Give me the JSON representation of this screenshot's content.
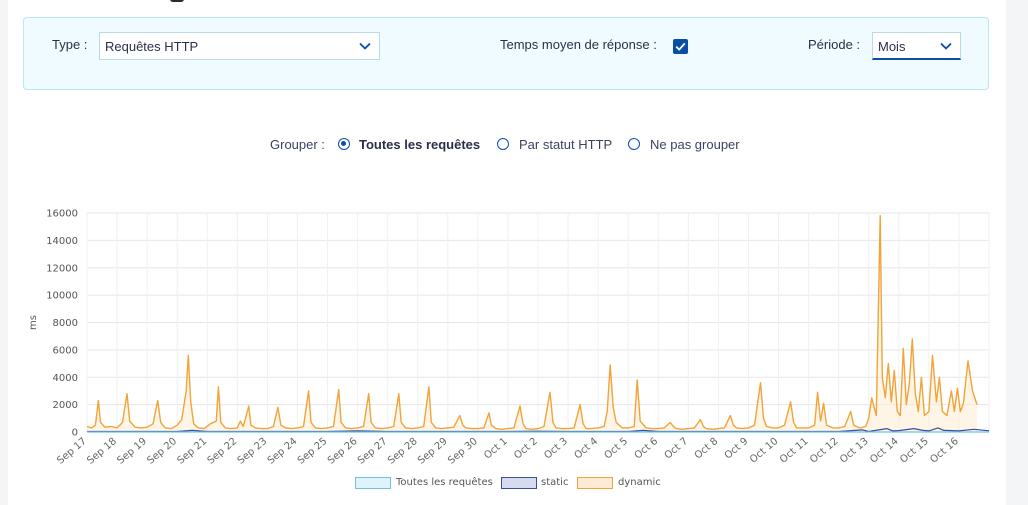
{
  "filters": {
    "type_label": "Type :",
    "type_value": "Requêtes HTTP",
    "avg_label": "Temps moyen de réponse :",
    "avg_checked": true,
    "period_label": "Période :",
    "period_value": "Mois"
  },
  "group": {
    "label": "Grouper :",
    "options": [
      {
        "label": "Toutes les requêtes",
        "selected": true
      },
      {
        "label": "Par statut HTTP",
        "selected": false
      },
      {
        "label": "Ne pas grouper",
        "selected": false
      }
    ]
  },
  "colors": {
    "dynamic": "#f0a43a",
    "dynamic_fill": "#fdecd3",
    "static": "#3b4e9c",
    "static_fill": "#d7dbee",
    "all": "#6ec3e6",
    "all_fill": "#dff3fb",
    "accent": "#0a4ea8"
  },
  "chart_data": {
    "type": "area",
    "ylabel": "ms",
    "ylim": [
      0,
      16000
    ],
    "yticks": [
      0,
      2000,
      4000,
      6000,
      8000,
      10000,
      12000,
      14000,
      16000
    ],
    "ytick_labels": [
      "0",
      "2000",
      "4000",
      "6000",
      "8000",
      "10000",
      "12000",
      "14000",
      "16000"
    ],
    "categories": [
      "Sep 17",
      "Sep 18",
      "Sep 19",
      "Sep 20",
      "Sep 21",
      "Sep 22",
      "Sep 23",
      "Sep 24",
      "Sep 25",
      "Sep 26",
      "Sep 27",
      "Sep 28",
      "Sep 29",
      "Sep 30",
      "Oct 1",
      "Oct 2",
      "Oct 3",
      "Oct 4",
      "Oct 5",
      "Oct 6",
      "Oct 7",
      "Oct 8",
      "Oct 9",
      "Oct 10",
      "Oct 11",
      "Oct 12",
      "Oct 13",
      "Oct 14",
      "Oct 15",
      "Oct 16"
    ],
    "grid": true,
    "legend_position": "bottom",
    "series": [
      {
        "name": "Toutes les requêtes",
        "points": [
          [
            0,
            0
          ],
          [
            30,
            0
          ]
        ],
        "fill_area": false
      },
      {
        "name": "static",
        "points": [
          [
            0,
            40
          ],
          [
            3,
            40
          ],
          [
            3.5,
            120
          ],
          [
            4,
            40
          ],
          [
            8,
            40
          ],
          [
            9,
            80
          ],
          [
            10,
            40
          ],
          [
            14,
            40
          ],
          [
            15,
            60
          ],
          [
            16,
            40
          ],
          [
            18,
            40
          ],
          [
            18.5,
            120
          ],
          [
            19,
            40
          ],
          [
            25,
            40
          ],
          [
            25.8,
            150
          ],
          [
            26,
            40
          ],
          [
            26.6,
            250
          ],
          [
            26.8,
            80
          ],
          [
            27,
            100
          ],
          [
            27.5,
            250
          ],
          [
            27.8,
            120
          ],
          [
            28,
            80
          ],
          [
            28.3,
            300
          ],
          [
            28.5,
            120
          ],
          [
            29,
            80
          ],
          [
            29.5,
            200
          ],
          [
            30,
            90
          ]
        ],
        "fill_area": false
      },
      {
        "name": "dynamic",
        "fill_area": true,
        "points": [
          [
            0,
            400
          ],
          [
            0.15,
            300
          ],
          [
            0.28,
            500
          ],
          [
            0.38,
            2300
          ],
          [
            0.45,
            700
          ],
          [
            0.6,
            350
          ],
          [
            0.8,
            400
          ],
          [
            1.0,
            300
          ],
          [
            1.18,
            700
          ],
          [
            1.33,
            2800
          ],
          [
            1.42,
            800
          ],
          [
            1.6,
            350
          ],
          [
            1.8,
            300
          ],
          [
            2.0,
            350
          ],
          [
            2.2,
            600
          ],
          [
            2.35,
            2300
          ],
          [
            2.45,
            700
          ],
          [
            2.6,
            300
          ],
          [
            2.8,
            250
          ],
          [
            3.0,
            500
          ],
          [
            3.15,
            900
          ],
          [
            3.3,
            3000
          ],
          [
            3.37,
            5600
          ],
          [
            3.45,
            2200
          ],
          [
            3.55,
            600
          ],
          [
            3.7,
            300
          ],
          [
            3.9,
            250
          ],
          [
            4.1,
            600
          ],
          [
            4.3,
            800
          ],
          [
            4.37,
            3300
          ],
          [
            4.45,
            700
          ],
          [
            4.6,
            300
          ],
          [
            4.8,
            250
          ],
          [
            5.0,
            300
          ],
          [
            5.1,
            800
          ],
          [
            5.2,
            400
          ],
          [
            5.38,
            1900
          ],
          [
            5.45,
            500
          ],
          [
            5.6,
            300
          ],
          [
            5.8,
            250
          ],
          [
            6.0,
            250
          ],
          [
            6.2,
            400
          ],
          [
            6.35,
            1800
          ],
          [
            6.45,
            500
          ],
          [
            6.6,
            300
          ],
          [
            6.8,
            250
          ],
          [
            7.0,
            300
          ],
          [
            7.2,
            400
          ],
          [
            7.37,
            3000
          ],
          [
            7.45,
            700
          ],
          [
            7.6,
            300
          ],
          [
            7.8,
            250
          ],
          [
            8.0,
            300
          ],
          [
            8.2,
            400
          ],
          [
            8.37,
            3100
          ],
          [
            8.45,
            700
          ],
          [
            8.6,
            300
          ],
          [
            8.8,
            250
          ],
          [
            9.0,
            300
          ],
          [
            9.2,
            400
          ],
          [
            9.37,
            2800
          ],
          [
            9.45,
            700
          ],
          [
            9.6,
            300
          ],
          [
            9.8,
            250
          ],
          [
            10.0,
            300
          ],
          [
            10.2,
            400
          ],
          [
            10.37,
            2800
          ],
          [
            10.45,
            700
          ],
          [
            10.6,
            300
          ],
          [
            10.8,
            250
          ],
          [
            11.0,
            300
          ],
          [
            11.2,
            400
          ],
          [
            11.37,
            3300
          ],
          [
            11.45,
            700
          ],
          [
            11.6,
            300
          ],
          [
            11.8,
            250
          ],
          [
            12.0,
            300
          ],
          [
            12.2,
            350
          ],
          [
            12.4,
            1200
          ],
          [
            12.5,
            500
          ],
          [
            12.6,
            300
          ],
          [
            12.8,
            250
          ],
          [
            13.0,
            250
          ],
          [
            13.2,
            300
          ],
          [
            13.37,
            1400
          ],
          [
            13.45,
            500
          ],
          [
            13.6,
            250
          ],
          [
            13.8,
            200
          ],
          [
            14.0,
            250
          ],
          [
            14.2,
            300
          ],
          [
            14.4,
            1900
          ],
          [
            14.5,
            600
          ],
          [
            14.6,
            250
          ],
          [
            14.8,
            200
          ],
          [
            15.0,
            250
          ],
          [
            15.2,
            400
          ],
          [
            15.4,
            2900
          ],
          [
            15.5,
            700
          ],
          [
            15.6,
            300
          ],
          [
            15.8,
            250
          ],
          [
            16.0,
            250
          ],
          [
            16.2,
            300
          ],
          [
            16.4,
            2000
          ],
          [
            16.5,
            600
          ],
          [
            16.6,
            250
          ],
          [
            16.8,
            250
          ],
          [
            17.0,
            300
          ],
          [
            17.2,
            400
          ],
          [
            17.3,
            1500
          ],
          [
            17.4,
            4900
          ],
          [
            17.5,
            1800
          ],
          [
            17.6,
            700
          ],
          [
            17.8,
            300
          ],
          [
            18.0,
            300
          ],
          [
            18.2,
            400
          ],
          [
            18.3,
            3800
          ],
          [
            18.4,
            800
          ],
          [
            18.6,
            300
          ],
          [
            18.8,
            250
          ],
          [
            19.0,
            250
          ],
          [
            19.2,
            300
          ],
          [
            19.4,
            700
          ],
          [
            19.5,
            400
          ],
          [
            19.6,
            250
          ],
          [
            19.8,
            200
          ],
          [
            20.0,
            250
          ],
          [
            20.2,
            300
          ],
          [
            20.4,
            900
          ],
          [
            20.5,
            400
          ],
          [
            20.6,
            250
          ],
          [
            20.8,
            200
          ],
          [
            21.0,
            250
          ],
          [
            21.2,
            300
          ],
          [
            21.4,
            1200
          ],
          [
            21.5,
            500
          ],
          [
            21.6,
            300
          ],
          [
            21.8,
            250
          ],
          [
            22.0,
            300
          ],
          [
            22.2,
            500
          ],
          [
            22.4,
            3600
          ],
          [
            22.5,
            1000
          ],
          [
            22.6,
            400
          ],
          [
            22.8,
            300
          ],
          [
            23.0,
            300
          ],
          [
            23.2,
            500
          ],
          [
            23.4,
            2200
          ],
          [
            23.5,
            700
          ],
          [
            23.6,
            300
          ],
          [
            23.8,
            300
          ],
          [
            24.0,
            300
          ],
          [
            24.2,
            500
          ],
          [
            24.3,
            2900
          ],
          [
            24.4,
            800
          ],
          [
            24.5,
            2100
          ],
          [
            24.6,
            500
          ],
          [
            24.8,
            300
          ],
          [
            25.0,
            300
          ],
          [
            25.2,
            400
          ],
          [
            25.4,
            1500
          ],
          [
            25.5,
            500
          ],
          [
            25.7,
            300
          ],
          [
            25.9,
            400
          ],
          [
            26.0,
            1000
          ],
          [
            26.1,
            2500
          ],
          [
            26.25,
            1200
          ],
          [
            26.38,
            15800
          ],
          [
            26.45,
            4000
          ],
          [
            26.55,
            2500
          ],
          [
            26.65,
            5000
          ],
          [
            26.75,
            2200
          ],
          [
            26.85,
            4500
          ],
          [
            26.95,
            1500
          ],
          [
            27.05,
            1200
          ],
          [
            27.15,
            6100
          ],
          [
            27.25,
            2000
          ],
          [
            27.35,
            3500
          ],
          [
            27.45,
            6800
          ],
          [
            27.55,
            2800
          ],
          [
            27.65,
            1500
          ],
          [
            27.75,
            4000
          ],
          [
            27.85,
            1200
          ],
          [
            28.0,
            1500
          ],
          [
            28.12,
            5600
          ],
          [
            28.25,
            2200
          ],
          [
            28.35,
            4000
          ],
          [
            28.45,
            1500
          ],
          [
            28.6,
            1200
          ],
          [
            28.75,
            3000
          ],
          [
            28.85,
            1500
          ],
          [
            28.95,
            3200
          ],
          [
            29.05,
            1500
          ],
          [
            29.15,
            2100
          ],
          [
            29.3,
            5200
          ],
          [
            29.45,
            3000
          ],
          [
            29.6,
            2000
          ]
        ]
      }
    ]
  }
}
